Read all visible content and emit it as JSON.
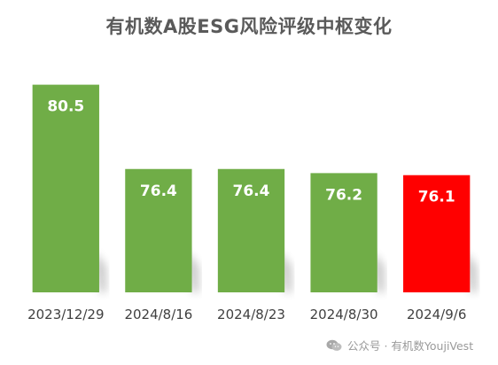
{
  "chart_data": {
    "type": "bar",
    "title": "有机数A股ESG风险评级中枢变化",
    "categories": [
      "2023/12/29",
      "2024/8/16",
      "2024/8/23",
      "2024/8/30",
      "2024/9/6"
    ],
    "values": [
      80.5,
      76.4,
      76.4,
      76.2,
      76.1
    ],
    "data_labels": [
      "80.5",
      "76.4",
      "76.4",
      "76.2",
      "76.1"
    ],
    "bar_colors": [
      "#70ad47",
      "#70ad47",
      "#70ad47",
      "#70ad47",
      "#ff0000"
    ],
    "xlabel": "",
    "ylabel": "",
    "ylim": [
      70.4,
      81.0
    ],
    "grid": false,
    "legend": "none"
  },
  "watermark": {
    "icon": "wechat-icon",
    "text": "公众号 · 有机数YoujiVest"
  }
}
